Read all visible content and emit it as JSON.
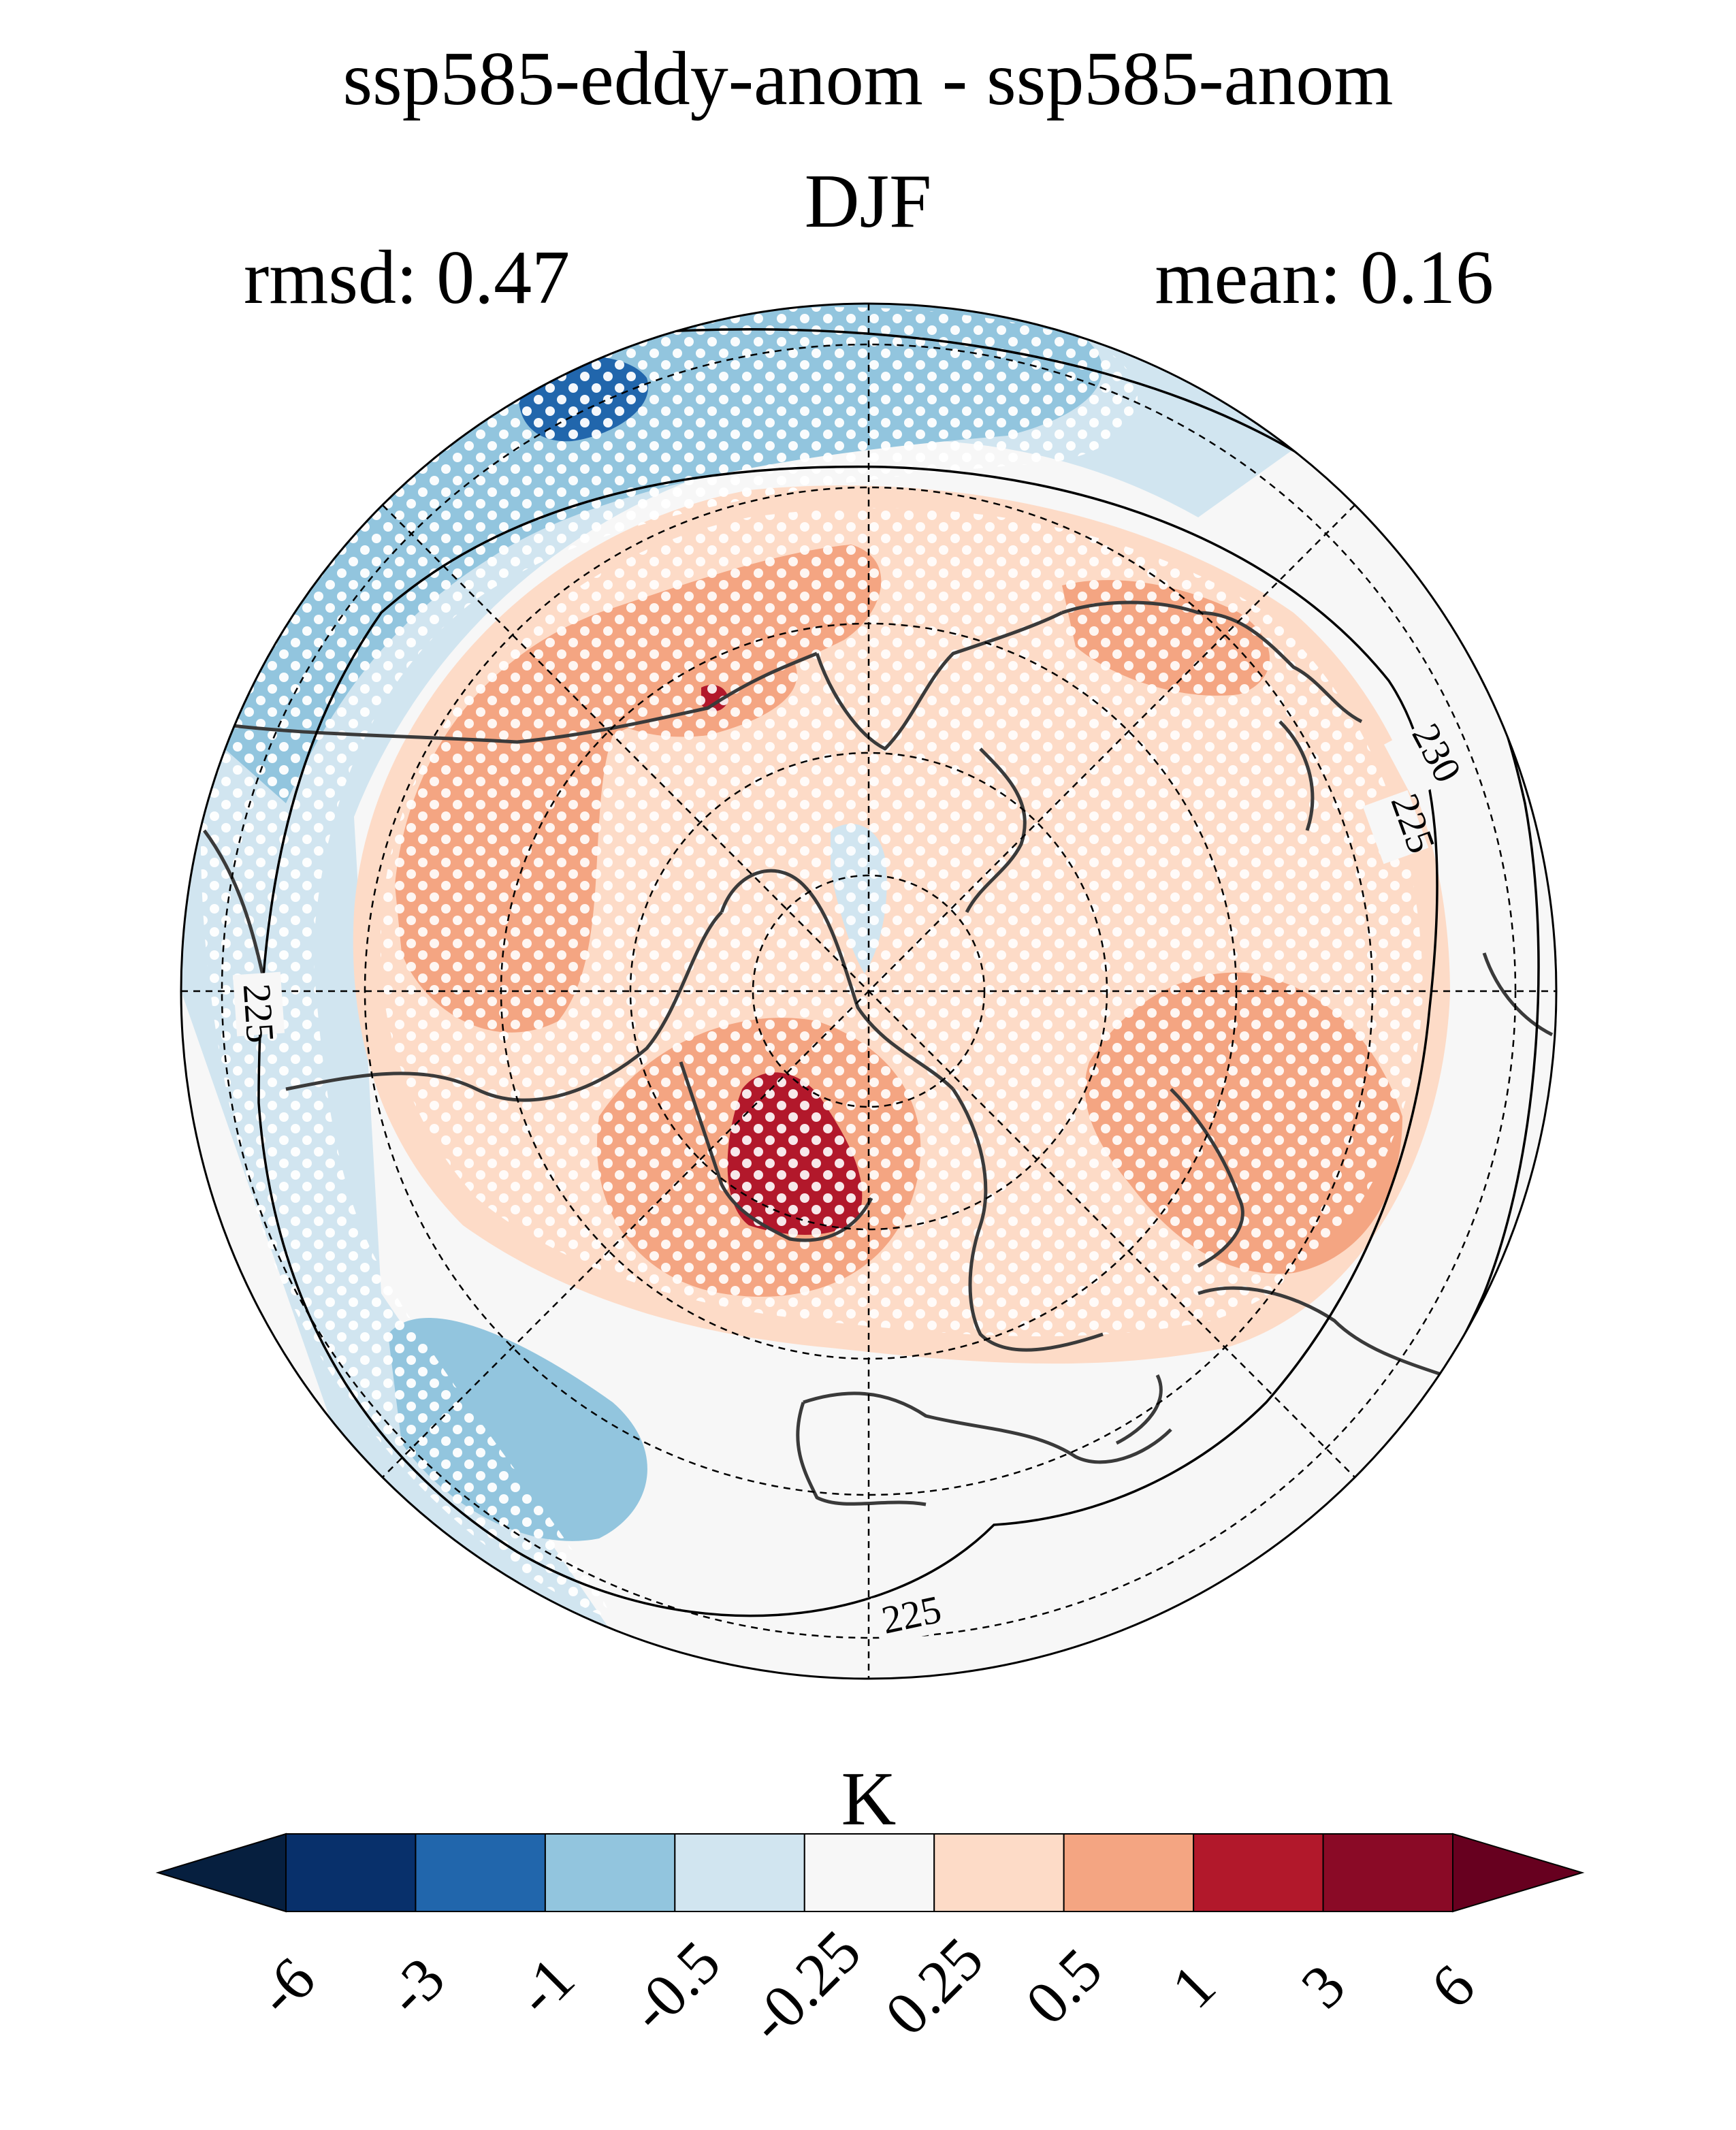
{
  "title": "ssp585-eddy-anom - ssp585-anom",
  "season": "DJF",
  "stats": {
    "rmsd": "rmsd: 0.47",
    "mean": "mean: 0.16"
  },
  "map": {
    "projection": "north-polar-stereographic",
    "contour_labels": [
      "230",
      "225",
      "225",
      "225"
    ],
    "stippling": "significance dots"
  },
  "colorbar": {
    "unit": "K",
    "ticks": [
      "-6",
      "-3",
      "-1",
      "-0.5",
      "-0.25",
      "0.25",
      "0.5",
      "1",
      "3",
      "6"
    ],
    "colors": [
      "#08306b",
      "#2166ac",
      "#92c5de",
      "#d1e5f0",
      "#f7f7f7",
      "#fddbc7",
      "#f4a582",
      "#b2182b",
      "#8a0a26"
    ],
    "extend_low_color": "#061f3f",
    "extend_high_color": "#67001f"
  },
  "colors": {
    "ocean_default": "#f7f7f7",
    "coastline": "#3a3a3a"
  }
}
